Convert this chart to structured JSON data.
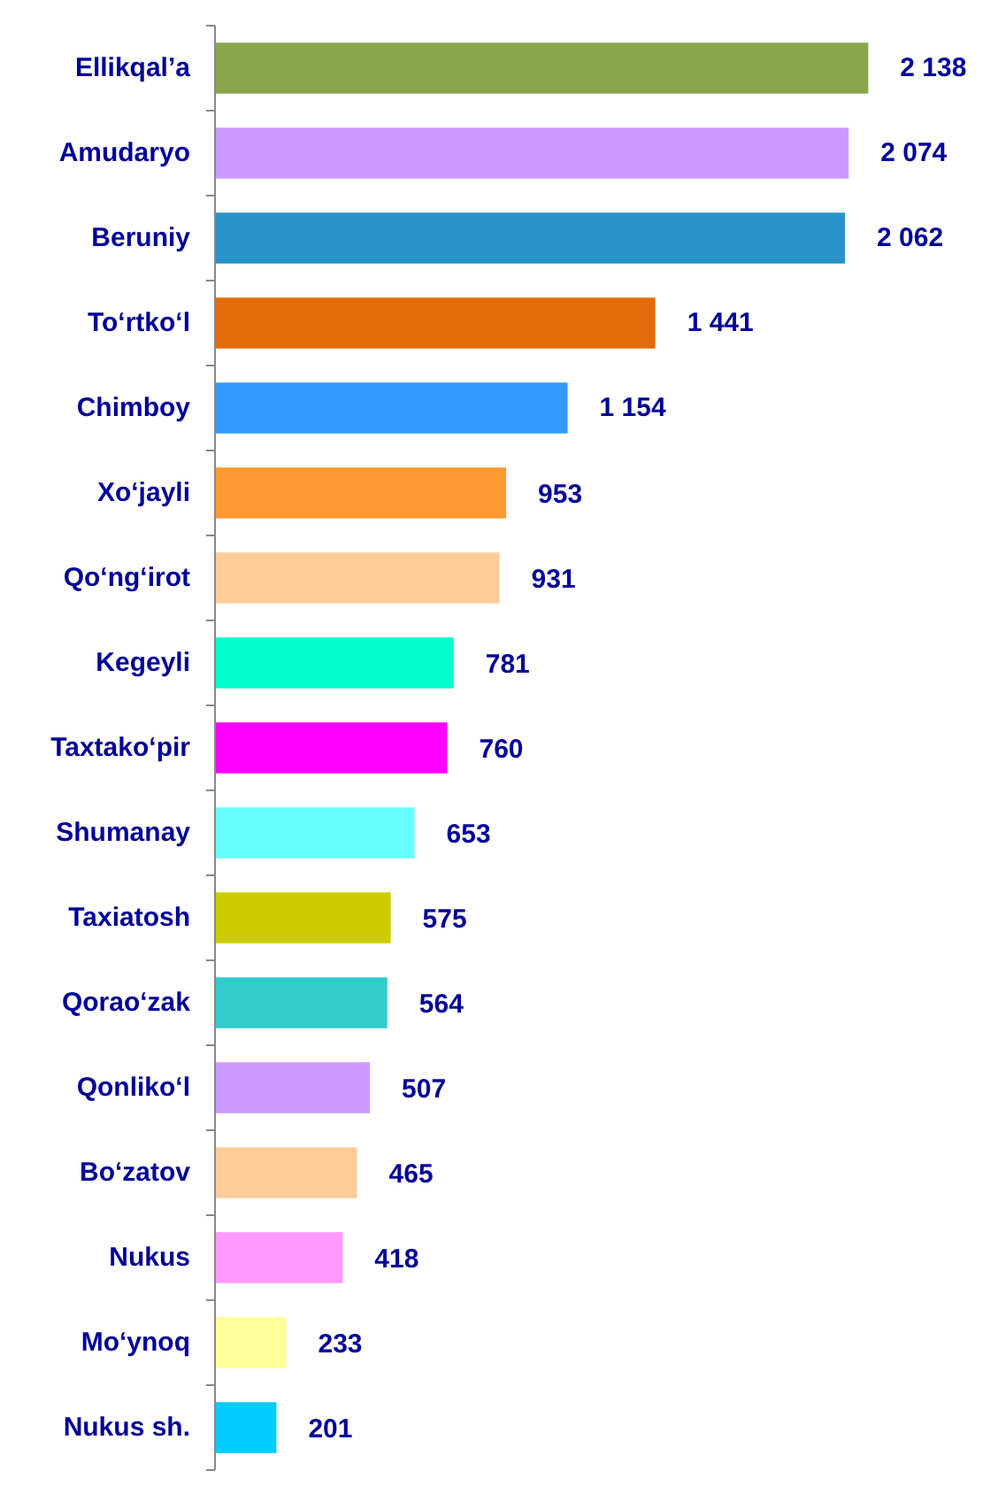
{
  "chart_data": {
    "type": "bar",
    "orientation": "horizontal",
    "categories": [
      "Ellikqal’a",
      "Amudaryo",
      "Beruniy",
      "To‘rtko‘l",
      "Chimboy",
      "Xo‘jayli",
      "Qo‘ng‘irot",
      "Kegeyli",
      "Taxtako‘pir",
      "Shumanay",
      "Taxiatosh",
      "Qorao‘zak",
      "Qonliko‘l",
      "Bo‘zatov",
      "Nukus",
      "Mo‘ynoq",
      "Nukus sh."
    ],
    "values": [
      2138,
      2074,
      2062,
      1441,
      1154,
      953,
      931,
      781,
      760,
      653,
      575,
      564,
      507,
      465,
      418,
      233,
      201
    ],
    "value_labels": [
      "2 138",
      "2 074",
      "2 062",
      "1 441",
      "1 154",
      "953",
      "931",
      "781",
      "760",
      "653",
      "575",
      "564",
      "507",
      "465",
      "418",
      "233",
      "201"
    ],
    "colors": [
      "#8aa64c",
      "#cc99ff",
      "#2a93c9",
      "#e46c0a",
      "#3399ff",
      "#ff9933",
      "#ffcc99",
      "#00ffcc",
      "#ff00ff",
      "#66ffff",
      "#cccc00",
      "#33cccc",
      "#cc99ff",
      "#ffcc99",
      "#ff99ff",
      "#ffff99",
      "#00ccff"
    ]
  }
}
